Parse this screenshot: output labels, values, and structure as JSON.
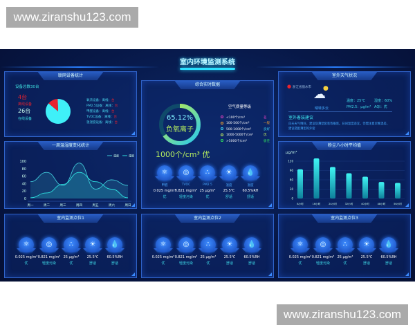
{
  "watermark": "www.ziranshu123.com",
  "header": {
    "title": "室内环境监测系统"
  },
  "devices": {
    "title": "联网设备统计",
    "total": "设备总数30台",
    "offline_count": "4台",
    "offline_label": "离线设备",
    "online_count": "26台",
    "online_label": "在线设备",
    "pie": {
      "offline": 4,
      "online": 26,
      "colors": {
        "offline": "#e8222e",
        "online": "#3ff0f8"
      }
    },
    "list": [
      {
        "name": "氧浓设备：",
        "state": "离线：",
        "unit": "台"
      },
      {
        "name": "PM2.5设备：",
        "state": "离线：",
        "unit": "台"
      },
      {
        "name": "甲醛设备：",
        "state": "离线：",
        "unit": "台"
      },
      {
        "name": "TVOC设备：",
        "state": "离线：",
        "unit": "台"
      },
      {
        "name": "温湿度设备：",
        "state": "离线：",
        "unit": "台"
      }
    ]
  },
  "realtime": {
    "title": "综合实时数据",
    "percent": "65.12%",
    "percent_value": 65.12,
    "ion_label": "负氧离子",
    "reading": "1000个/cm³  优",
    "grade_title": "空气质量等级",
    "grades": [
      {
        "range": "<100个/cm³",
        "level": "差",
        "color": "#e040c0"
      },
      {
        "range": "100-500个/cm³",
        "level": "一般",
        "color": "#f0a030"
      },
      {
        "range": "500-1000个/cm³",
        "level": "良好",
        "color": "#40d0f0"
      },
      {
        "range": "1000-5000个/cm³",
        "level": "优",
        "color": "#c8f060"
      },
      {
        "range": ">5000个/cm³",
        "level": "极佳",
        "color": "#30e060"
      }
    ],
    "metrics": [
      {
        "label": "甲醛",
        "value": "0.025 mg/m³",
        "status": "优",
        "icon": "molecule-icon"
      },
      {
        "label": "TVOC",
        "value": "0.821 mg/m³",
        "status": "轻度污染",
        "icon": "bubble-icon"
      },
      {
        "label": "PM2.5",
        "value": "25 μg/m³",
        "status": "优",
        "icon": "dust-icon"
      },
      {
        "label": "温度",
        "value": "25.5℃",
        "status": "舒适",
        "icon": "thermometer-icon"
      },
      {
        "label": "湿度",
        "value": "60.5%RH",
        "status": "舒适",
        "icon": "water-drop-icon"
      }
    ]
  },
  "weather": {
    "title": "室外天气状况",
    "location": "浙江省丽水市",
    "condition": "晴转多云",
    "temperature": "温度：25℃",
    "humidity": "湿度：60%",
    "pm25": "PM2.5：μg/m³",
    "aqi": "AQI：优",
    "advice_title": "室外着装建议",
    "advice": "白天天气晴好，建议穿薄型套装等服装。日间温度适宜，但需注意早晚温差，建议搭配薄型的外套"
  },
  "chart_data": [
    {
      "type": "line",
      "title": "一周温湿度变化统计",
      "categories": [
        "周一",
        "周二",
        "周三",
        "周四",
        "周五",
        "周六",
        "周日"
      ],
      "ylim": [
        0,
        100
      ],
      "yticks": [
        0,
        20,
        40,
        60,
        80,
        100
      ],
      "legend": "top-right",
      "series": [
        {
          "name": "温度",
          "values": [
            45,
            70,
            35,
            95,
            25,
            50,
            35
          ],
          "color": "#3fc8d8"
        },
        {
          "name": "湿度",
          "values": [
            2,
            15,
            38,
            70,
            45,
            25,
            2
          ],
          "color": "#2ee0e0"
        }
      ]
    },
    {
      "type": "bar",
      "title": "粉尘八小时平均值",
      "ylabel": "μg/m³",
      "categories": [
        "8小时",
        "16小时",
        "24小时",
        "32小时",
        "40小时",
        "48小时",
        "56小时"
      ],
      "values": [
        94,
        129,
        101,
        81,
        70,
        53,
        50
      ],
      "ylim": [
        0,
        120
      ],
      "yticks": [
        0,
        30,
        60,
        90,
        120
      ],
      "color": "#2de8e8"
    }
  ],
  "points": [
    {
      "title": "室内监测点位1",
      "metrics": [
        {
          "value": "0.025 mg/m³",
          "status": "优"
        },
        {
          "value": "0.821 mg/m³",
          "status": "轻度污染"
        },
        {
          "value": "25 μg/m³",
          "status": "优"
        },
        {
          "value": "25.5℃",
          "status": "舒适"
        },
        {
          "value": "60.5%RH",
          "status": "舒适"
        }
      ]
    },
    {
      "title": "室内监测点位2",
      "metrics": [
        {
          "value": "0.025 mg/m³",
          "status": "优"
        },
        {
          "value": "0.821 mg/m³",
          "status": "轻度污染"
        },
        {
          "value": "25 μg/m³",
          "status": "优"
        },
        {
          "value": "25.5℃",
          "status": "舒适"
        },
        {
          "value": "60.5%RH",
          "status": "舒适"
        }
      ]
    },
    {
      "title": "室内监测点位3",
      "metrics": [
        {
          "value": "0.025 mg/m³",
          "status": "优"
        },
        {
          "value": "0.821 mg/m³",
          "status": "轻度污染"
        },
        {
          "value": "25 μg/m³",
          "status": "优"
        },
        {
          "value": "25.5℃",
          "status": "舒适"
        },
        {
          "value": "60.5%RH",
          "status": "舒适"
        }
      ]
    }
  ]
}
